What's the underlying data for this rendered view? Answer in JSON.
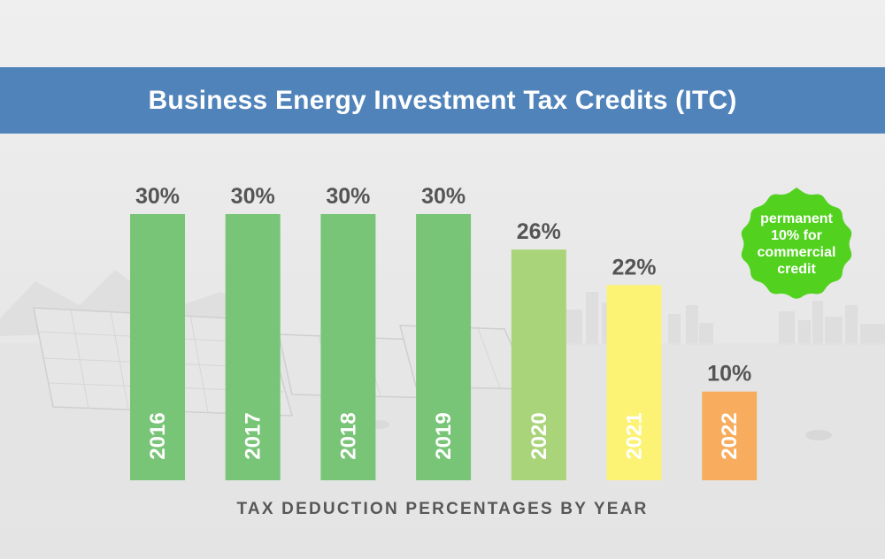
{
  "header": {
    "title": "Business Energy Investment Tax Credits (ITC)"
  },
  "chart_data": {
    "type": "bar",
    "title": "Business Energy Investment Tax Credits (ITC)",
    "xlabel": "TAX DEDUCTION PERCENTAGES BY YEAR",
    "ylabel": "",
    "categories": [
      "2016",
      "2017",
      "2018",
      "2019",
      "2020",
      "2021",
      "2022"
    ],
    "values": [
      30,
      30,
      30,
      30,
      26,
      22,
      10
    ],
    "value_labels": [
      "30%",
      "30%",
      "30%",
      "30%",
      "26%",
      "22%",
      "10%"
    ],
    "colors": [
      "#79c577",
      "#79c577",
      "#79c577",
      "#79c577",
      "#aad47a",
      "#fcf374",
      "#f8ad5e"
    ],
    "ylim": [
      0,
      30
    ],
    "grid": false
  },
  "caption": "TAX DEDUCTION PERCENTAGES BY YEAR",
  "badge": {
    "lines": [
      "permanent",
      "10% for",
      "commercial",
      "credit"
    ],
    "color": "#52d21f"
  }
}
